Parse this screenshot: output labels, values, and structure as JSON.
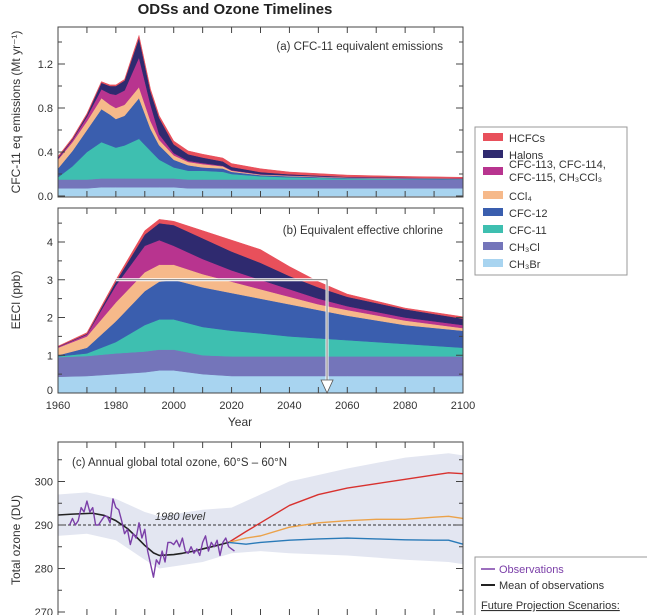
{
  "title": "ODSs and Ozone Timelines",
  "colors": {
    "HCFCs": "#e8505b",
    "Halons": "#2f2a6f",
    "CFC-113 group": "#b8348f",
    "CCl4": "#f6b98a",
    "CFC-12": "#3a5eae",
    "CFC-11": "#3ebfb0",
    "CH3Cl": "#7475ba",
    "CH3Br": "#a8d4f0",
    "observations": "#7b3fa8",
    "mean": "#222222",
    "band": "#e3e6f1",
    "red_scenario": "#d8322f",
    "orange_scenario": "#eba24a",
    "blue_scenario": "#2a7ab8"
  },
  "legend_species": [
    {
      "key": "HCFCs",
      "label": "HCFCs"
    },
    {
      "key": "Halons",
      "label": "Halons"
    },
    {
      "key": "CFC-113 group",
      "label": "CFC-113, CFC-114,",
      "label2": "CFC-115, CH₃CCl₃"
    },
    {
      "key": "CCl4",
      "label": "CCl₄"
    },
    {
      "key": "CFC-12",
      "label": "CFC-12"
    },
    {
      "key": "CFC-11",
      "label": "CFC-11"
    },
    {
      "key": "CH3Cl",
      "label": "CH₃Cl"
    },
    {
      "key": "CH3Br",
      "label": "CH₃Br"
    }
  ],
  "legend_ozone": {
    "observations": "Observations",
    "mean": "Mean of observations",
    "scenarios_heading": "Future Projection Scenarios:"
  },
  "chart_data": [
    {
      "type": "area",
      "stacked": true,
      "title": "(a) CFC-11 equivalent emissions",
      "ylabel": "CFC-11 eq emissions (Mt yr⁻¹)",
      "xlim": [
        1960,
        2100
      ],
      "ylim": [
        0,
        1.5
      ],
      "yticks": [
        "0.0",
        "0.4",
        "0.8",
        "1.2"
      ],
      "x": [
        1960,
        1965,
        1970,
        1975,
        1978,
        1980,
        1983,
        1988,
        1992,
        1995,
        2000,
        2005,
        2010,
        2017,
        2020,
        2030,
        2040,
        2060,
        2080,
        2100
      ],
      "series": [
        {
          "name": "CH3Br",
          "values": [
            0.07,
            0.07,
            0.07,
            0.08,
            0.08,
            0.08,
            0.08,
            0.08,
            0.08,
            0.08,
            0.08,
            0.07,
            0.07,
            0.07,
            0.07,
            0.07,
            0.07,
            0.07,
            0.07,
            0.07
          ]
        },
        {
          "name": "CH3Cl",
          "values": [
            0.08,
            0.08,
            0.08,
            0.08,
            0.08,
            0.08,
            0.08,
            0.08,
            0.08,
            0.08,
            0.08,
            0.08,
            0.08,
            0.08,
            0.08,
            0.08,
            0.08,
            0.08,
            0.08,
            0.08
          ]
        },
        {
          "name": "CFC-11",
          "values": [
            0.02,
            0.12,
            0.25,
            0.33,
            0.3,
            0.28,
            0.3,
            0.36,
            0.25,
            0.17,
            0.1,
            0.08,
            0.08,
            0.07,
            0.05,
            0.03,
            0.02,
            0.01,
            0.005,
            0.0
          ]
        },
        {
          "name": "CFC-12",
          "values": [
            0.08,
            0.14,
            0.2,
            0.3,
            0.28,
            0.26,
            0.27,
            0.37,
            0.2,
            0.13,
            0.07,
            0.05,
            0.03,
            0.03,
            0.02,
            0.01,
            0.01,
            0.005,
            0.005,
            0.005
          ]
        },
        {
          "name": "CCl4",
          "values": [
            0.08,
            0.08,
            0.08,
            0.1,
            0.09,
            0.1,
            0.1,
            0.1,
            0.07,
            0.05,
            0.04,
            0.03,
            0.03,
            0.02,
            0.01,
            0.005,
            0.005,
            0.003,
            0.003,
            0.003
          ]
        },
        {
          "name": "CFC-113 group",
          "values": [
            0.01,
            0.02,
            0.04,
            0.08,
            0.1,
            0.12,
            0.13,
            0.27,
            0.15,
            0.05,
            0.02,
            0.01,
            0.01,
            0.005,
            0.005,
            0.003,
            0.003,
            0.002,
            0.002,
            0.002
          ]
        },
        {
          "name": "Halons",
          "values": [
            0.01,
            0.01,
            0.02,
            0.06,
            0.07,
            0.08,
            0.09,
            0.18,
            0.12,
            0.15,
            0.08,
            0.06,
            0.05,
            0.04,
            0.03,
            0.02,
            0.01,
            0.005,
            0.003,
            0.002
          ]
        },
        {
          "name": "HCFCs",
          "values": [
            0.01,
            0.01,
            0.01,
            0.01,
            0.01,
            0.01,
            0.01,
            0.02,
            0.02,
            0.02,
            0.03,
            0.03,
            0.03,
            0.03,
            0.03,
            0.03,
            0.02,
            0.015,
            0.01,
            0.008
          ]
        }
      ]
    },
    {
      "type": "area",
      "stacked": true,
      "title": "(b) Equivalent effective chlorine",
      "ylabel": "EECl (ppb)",
      "xlabel": "Year",
      "xlim": [
        1960,
        2100
      ],
      "ylim": [
        0,
        4.9
      ],
      "xticks": [
        "1960",
        "1980",
        "2000",
        "2020",
        "2040",
        "2060",
        "2080",
        "2100"
      ],
      "yticks": [
        "0",
        "1",
        "2",
        "3",
        "4"
      ],
      "x": [
        1960,
        1970,
        1980,
        1990,
        1995,
        2000,
        2010,
        2020,
        2030,
        2040,
        2050,
        2060,
        2080,
        2100
      ],
      "series": [
        {
          "name": "CH3Br",
          "values": [
            0.43,
            0.45,
            0.5,
            0.55,
            0.6,
            0.6,
            0.5,
            0.45,
            0.45,
            0.45,
            0.45,
            0.45,
            0.45,
            0.45
          ]
        },
        {
          "name": "CH3Cl",
          "values": [
            0.52,
            0.53,
            0.55,
            0.55,
            0.55,
            0.55,
            0.5,
            0.52,
            0.52,
            0.52,
            0.52,
            0.52,
            0.52,
            0.52
          ]
        },
        {
          "name": "CFC-11",
          "values": [
            0.02,
            0.07,
            0.3,
            0.7,
            0.8,
            0.8,
            0.75,
            0.68,
            0.61,
            0.53,
            0.48,
            0.43,
            0.33,
            0.23
          ]
        },
        {
          "name": "CFC-12",
          "values": [
            0.03,
            0.15,
            0.55,
            0.9,
            1.0,
            1.05,
            1.05,
            1.0,
            0.92,
            0.85,
            0.75,
            0.65,
            0.5,
            0.45
          ]
        },
        {
          "name": "CCl4",
          "values": [
            0.2,
            0.3,
            0.5,
            0.5,
            0.45,
            0.4,
            0.35,
            0.3,
            0.25,
            0.2,
            0.15,
            0.15,
            0.12,
            0.07
          ]
        },
        {
          "name": "CFC-113 group",
          "values": [
            0.02,
            0.05,
            0.45,
            0.7,
            0.65,
            0.5,
            0.4,
            0.3,
            0.25,
            0.2,
            0.15,
            0.1,
            0.08,
            0.08
          ]
        },
        {
          "name": "Halons",
          "values": [
            0.01,
            0.02,
            0.1,
            0.3,
            0.45,
            0.55,
            0.55,
            0.5,
            0.45,
            0.35,
            0.3,
            0.25,
            0.22,
            0.17
          ]
        },
        {
          "name": "HCFCs",
          "values": [
            0.01,
            0.03,
            0.05,
            0.1,
            0.1,
            0.1,
            0.2,
            0.3,
            0.35,
            0.25,
            0.15,
            0.07,
            0.03,
            0.05
          ]
        }
      ],
      "reference": {
        "eecl_1980_level": 3.0,
        "start_year": 1980,
        "return_year": 2053
      }
    },
    {
      "type": "line",
      "title": "(c) Annual global total ozone, 60°S – 60°N",
      "ylabel": "Total ozone (DU)",
      "xlim": [
        1960,
        2100
      ],
      "ylim": [
        270,
        308
      ],
      "yticks": [
        "270",
        "280",
        "290",
        "300"
      ],
      "reference_line": {
        "label": "1980 level",
        "value": 290
      },
      "band": {
        "x": [
          1960,
          1970,
          1980,
          1990,
          1995,
          2000,
          2010,
          2020,
          2030,
          2040,
          2060,
          2080,
          2095,
          2100
        ],
        "upper": [
          297,
          297.5,
          296,
          293,
          292,
          292.5,
          293.5,
          294,
          297,
          300,
          303,
          305.5,
          306.5,
          306
        ],
        "lower": [
          287.5,
          288,
          286.5,
          282,
          280,
          280.5,
          281.5,
          283.5,
          284,
          283.5,
          283,
          282,
          281.5,
          281
        ]
      },
      "series": [
        {
          "name": "Observations",
          "key": "observations",
          "x": [
            1964,
            1965,
            1966,
            1967,
            1968,
            1969,
            1970,
            1971,
            1972,
            1973,
            1974,
            1975,
            1976,
            1977,
            1978,
            1979,
            1980,
            1981,
            1982,
            1983,
            1984,
            1985,
            1986,
            1987,
            1988,
            1989,
            1990,
            1991,
            1992,
            1993,
            1994,
            1995,
            1996,
            1997,
            1998,
            1999,
            2000,
            2001,
            2002,
            2003,
            2004,
            2005,
            2006,
            2007,
            2008,
            2009,
            2010,
            2011,
            2012,
            2013,
            2014,
            2015,
            2016,
            2017,
            2018,
            2019,
            2020,
            2021
          ],
          "values": [
            290,
            291.5,
            290,
            291,
            294,
            293,
            295.5,
            293,
            294,
            290,
            290,
            291,
            292,
            292,
            290.5,
            296,
            294,
            293.5,
            291,
            288,
            289,
            285.5,
            288,
            287,
            290.5,
            287,
            289,
            284,
            281,
            278,
            282,
            281,
            284,
            281.5,
            286,
            286,
            285.5,
            286.5,
            285,
            287,
            284,
            283.5,
            285,
            283.5,
            284.5,
            283,
            286,
            287.5,
            284,
            286,
            285,
            286.5,
            283,
            286,
            287,
            285,
            284.5,
            284
          ]
        },
        {
          "name": "Mean of observations",
          "key": "mean",
          "x": [
            1960,
            1965,
            1972,
            1976,
            1980,
            1984,
            1987,
            1990,
            1993,
            1995,
            2000,
            2003,
            2007,
            2010,
            2015,
            2019
          ],
          "values": [
            292.3,
            292.5,
            292.7,
            292.2,
            291,
            289.2,
            287.3,
            285.3,
            283.6,
            283,
            283.2,
            283.5,
            284,
            284.5,
            285.3,
            286
          ]
        },
        {
          "key": "red_scenario",
          "x": [
            2019,
            2025,
            2030,
            2040,
            2050,
            2060,
            2070,
            2080,
            2090,
            2095,
            2100
          ],
          "values": [
            286,
            288.5,
            290.5,
            294.5,
            297,
            298.5,
            299.5,
            300.5,
            301.5,
            302,
            301.8
          ]
        },
        {
          "key": "orange_scenario",
          "x": [
            2019,
            2025,
            2030,
            2040,
            2050,
            2060,
            2070,
            2080,
            2090,
            2095,
            2100
          ],
          "values": [
            286,
            287,
            287.5,
            289.5,
            290.5,
            291,
            291.3,
            291.3,
            291.8,
            292,
            291.5
          ]
        },
        {
          "key": "blue_scenario",
          "x": [
            2019,
            2025,
            2030,
            2040,
            2050,
            2060,
            2070,
            2080,
            2090,
            2095,
            2100
          ],
          "values": [
            286,
            285.6,
            286,
            286.5,
            286.8,
            287,
            286.8,
            286.6,
            286.5,
            286.5,
            285.6
          ]
        }
      ]
    }
  ]
}
